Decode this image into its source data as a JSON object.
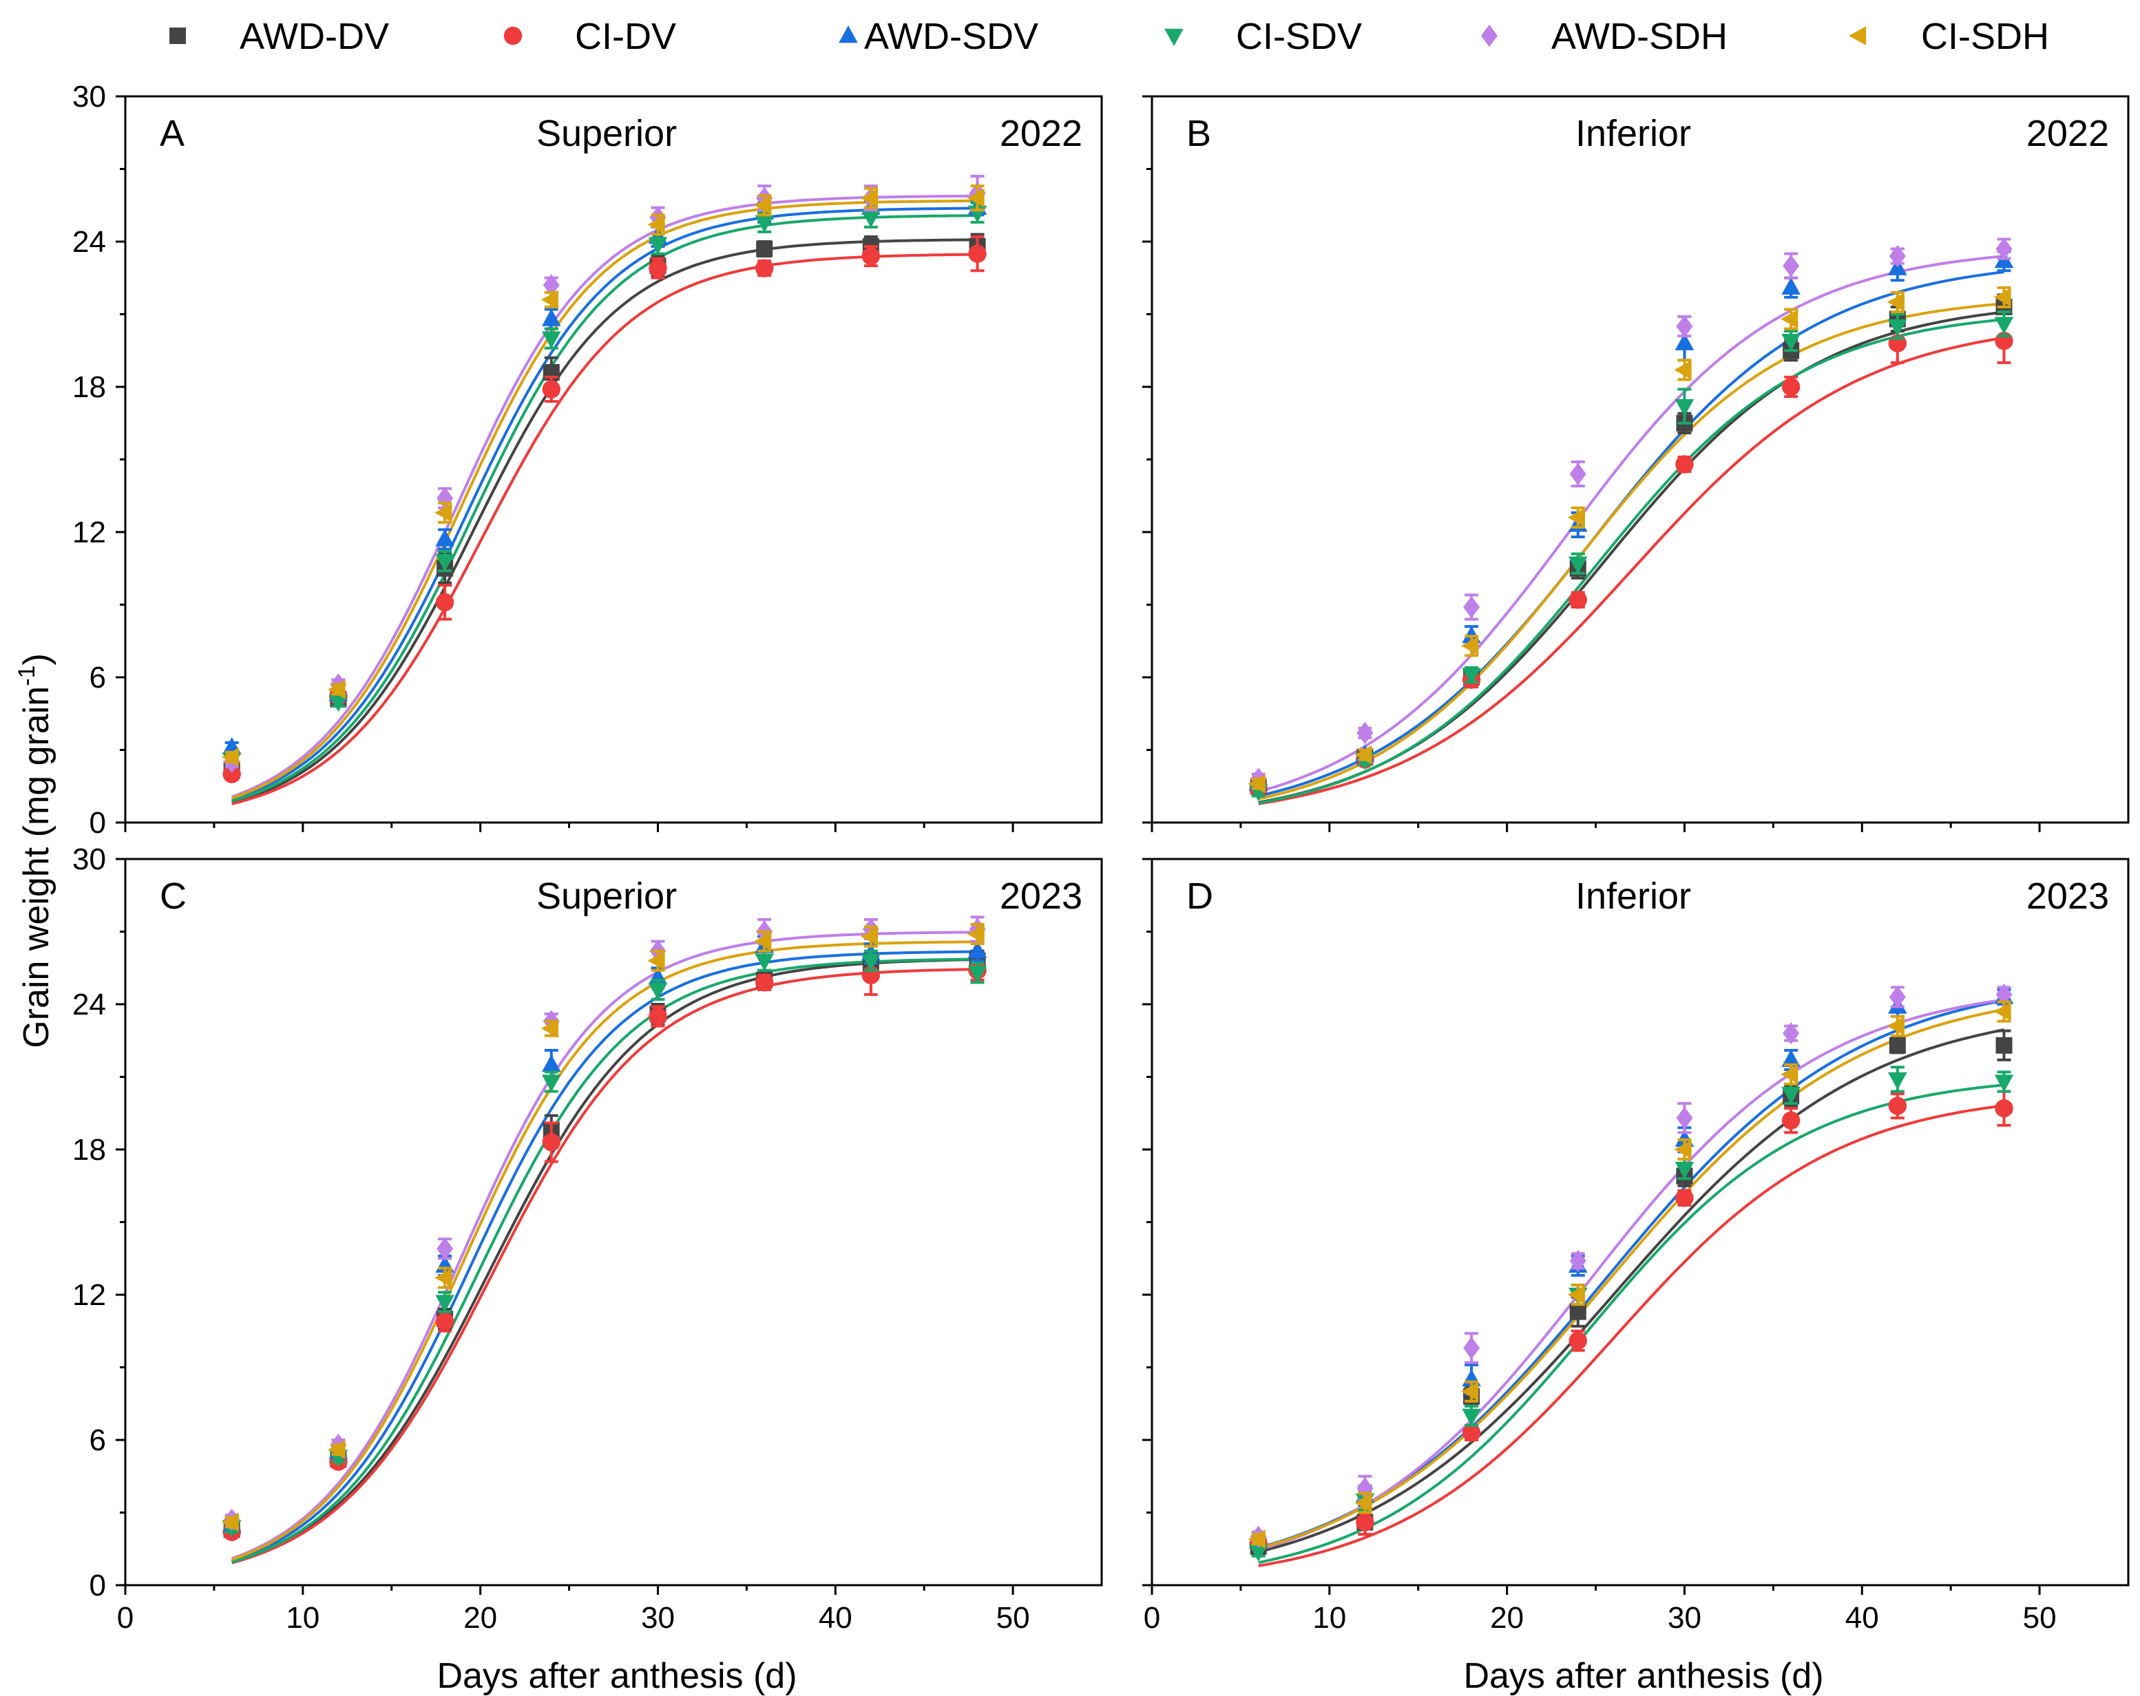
{
  "legend": [
    {
      "label": "AWD-DV",
      "color": "#444444",
      "marker": "square"
    },
    {
      "label": "CI-DV",
      "color": "#ee3b3b",
      "marker": "circle"
    },
    {
      "label": "AWD-SDV",
      "color": "#1a6fdf",
      "marker": "triangle-up"
    },
    {
      "label": "CI-SDV",
      "color": "#18a86b",
      "marker": "triangle-down"
    },
    {
      "label": "AWD-SDH",
      "color": "#bf7fe8",
      "marker": "diamond"
    },
    {
      "label": "CI-SDH",
      "color": "#d9a20f",
      "marker": "triangle-left"
    }
  ],
  "axes": {
    "xlabel": "Days after anthesis (d)",
    "ylabel_main": "Grain weight (mg grain",
    "ylabel_sup": "-1",
    "ylabel_end": ")",
    "xlim": [
      0,
      55
    ],
    "ylim": [
      0,
      30
    ],
    "xticks": [
      0,
      10,
      20,
      30,
      40,
      50
    ],
    "yticks": [
      0,
      6,
      12,
      18,
      24,
      30
    ]
  },
  "chart_data": [
    {
      "type": "scatter",
      "panel": "A",
      "title": "Superior",
      "year": "2022",
      "x": [
        6,
        12,
        18,
        24,
        30,
        36,
        42,
        48
      ],
      "series": [
        {
          "name": "AWD-DV",
          "values": [
            2.2,
            5.1,
            10.5,
            18.6,
            23.0,
            23.7,
            23.8,
            23.8
          ],
          "err": [
            0.2,
            0.2,
            0.6,
            0.6,
            0.4,
            0.3,
            0.4,
            0.5
          ]
        },
        {
          "name": "CI-DV",
          "values": [
            2.0,
            5.2,
            9.1,
            17.9,
            22.9,
            22.9,
            23.4,
            23.5
          ],
          "err": [
            0.2,
            0.2,
            0.7,
            0.5,
            0.4,
            0.3,
            0.4,
            0.7
          ]
        },
        {
          "name": "AWD-SDV",
          "values": [
            3.1,
            5.3,
            11.7,
            20.8,
            24.2,
            25.2,
            25.4,
            25.4
          ],
          "err": [
            0.2,
            0.2,
            0.4,
            0.4,
            0.4,
            0.4,
            0.3,
            0.3
          ]
        },
        {
          "name": "CI-SDV",
          "values": [
            2.6,
            5.0,
            10.8,
            20.0,
            23.9,
            24.8,
            25.0,
            25.2
          ],
          "err": [
            0.2,
            0.2,
            0.4,
            0.4,
            0.4,
            0.4,
            0.4,
            0.4
          ]
        },
        {
          "name": "AWD-SDH",
          "values": [
            2.5,
            5.7,
            13.4,
            22.2,
            25.0,
            25.8,
            25.8,
            26.0
          ],
          "err": [
            0.2,
            0.2,
            0.4,
            0.3,
            0.4,
            0.5,
            0.5,
            0.7
          ]
        },
        {
          "name": "CI-SDH",
          "values": [
            2.7,
            5.5,
            12.8,
            21.6,
            24.7,
            25.5,
            25.8,
            25.8
          ],
          "err": [
            0.2,
            0.2,
            0.4,
            0.3,
            0.4,
            0.4,
            0.4,
            0.5
          ]
        }
      ],
      "fits": [
        {
          "name": "AWD-DV",
          "A": 24.1,
          "k": 0.245,
          "t0": 19.6
        },
        {
          "name": "CI-DV",
          "A": 23.5,
          "k": 0.24,
          "t0": 20.1
        },
        {
          "name": "AWD-SDV",
          "A": 25.4,
          "k": 0.245,
          "t0": 19.2
        },
        {
          "name": "CI-SDV",
          "A": 25.1,
          "k": 0.245,
          "t0": 19.5
        },
        {
          "name": "AWD-SDH",
          "A": 25.9,
          "k": 0.25,
          "t0": 18.6
        },
        {
          "name": "CI-SDH",
          "A": 25.7,
          "k": 0.25,
          "t0": 18.8
        }
      ]
    },
    {
      "type": "scatter",
      "panel": "B",
      "title": "Inferior",
      "year": "2022",
      "x": [
        6,
        12,
        18,
        24,
        30,
        36,
        42,
        48
      ],
      "series": [
        {
          "name": "AWD-DV",
          "values": [
            1.5,
            2.7,
            6.0,
            10.5,
            16.5,
            19.5,
            20.8,
            21.3
          ],
          "err": [
            0.2,
            0.2,
            0.3,
            0.4,
            0.4,
            0.4,
            0.5,
            0.5
          ]
        },
        {
          "name": "CI-DV",
          "values": [
            1.4,
            2.6,
            5.9,
            9.2,
            14.8,
            18.0,
            19.8,
            19.9
          ],
          "err": [
            0.2,
            0.2,
            0.3,
            0.3,
            0.3,
            0.4,
            0.8,
            0.9
          ]
        },
        {
          "name": "AWD-SDV",
          "values": [
            1.6,
            2.8,
            7.7,
            12.3,
            19.8,
            22.1,
            22.9,
            23.2
          ],
          "err": [
            0.2,
            0.2,
            0.4,
            0.5,
            0.7,
            0.4,
            0.5,
            0.4
          ]
        },
        {
          "name": "CI-SDV",
          "values": [
            1.3,
            2.6,
            6.1,
            10.7,
            17.2,
            19.9,
            20.5,
            20.6
          ],
          "err": [
            0.2,
            0.2,
            0.3,
            0.4,
            0.7,
            0.4,
            0.5,
            0.5
          ]
        },
        {
          "name": "AWD-SDH",
          "values": [
            1.8,
            3.7,
            8.9,
            14.4,
            20.5,
            23.0,
            23.4,
            23.7
          ],
          "err": [
            0.2,
            0.2,
            0.5,
            0.5,
            0.4,
            0.5,
            0.3,
            0.4
          ]
        },
        {
          "name": "CI-SDH",
          "values": [
            1.6,
            2.8,
            7.3,
            12.6,
            18.7,
            20.8,
            21.5,
            21.7
          ],
          "err": [
            0.2,
            0.2,
            0.4,
            0.4,
            0.4,
            0.4,
            0.4,
            0.4
          ]
        }
      ],
      "fits": [
        {
          "name": "AWD-DV",
          "A": 21.6,
          "k": 0.165,
          "t0": 25.5
        },
        {
          "name": "CI-DV",
          "A": 20.8,
          "k": 0.155,
          "t0": 27.0
        },
        {
          "name": "AWD-SDV",
          "A": 23.3,
          "k": 0.16,
          "t0": 24.8
        },
        {
          "name": "CI-SDV",
          "A": 21.2,
          "k": 0.17,
          "t0": 25.0
        },
        {
          "name": "AWD-SDH",
          "A": 23.8,
          "k": 0.165,
          "t0": 23.4
        },
        {
          "name": "CI-SDH",
          "A": 21.8,
          "k": 0.17,
          "t0": 24.0
        }
      ]
    },
    {
      "type": "scatter",
      "panel": "C",
      "title": "Superior",
      "year": "2023",
      "x": [
        6,
        12,
        18,
        24,
        30,
        36,
        42,
        48
      ],
      "series": [
        {
          "name": "AWD-DV",
          "values": [
            2.3,
            5.2,
            11.0,
            18.8,
            23.6,
            25.0,
            25.7,
            25.8
          ],
          "err": [
            0.2,
            0.2,
            0.4,
            0.6,
            0.4,
            0.4,
            0.4,
            0.4
          ]
        },
        {
          "name": "CI-DV",
          "values": [
            2.2,
            5.1,
            10.9,
            18.3,
            23.5,
            24.9,
            25.2,
            25.4
          ],
          "err": [
            0.2,
            0.2,
            0.4,
            0.8,
            0.4,
            0.3,
            0.8,
            0.4
          ]
        },
        {
          "name": "AWD-SDV",
          "values": [
            2.5,
            5.5,
            13.2,
            21.5,
            25.1,
            26.4,
            26.1,
            26.2
          ],
          "err": [
            0.2,
            0.2,
            0.4,
            0.6,
            0.4,
            0.4,
            0.4,
            0.4
          ]
        },
        {
          "name": "CI-SDV",
          "values": [
            2.4,
            5.3,
            11.7,
            20.8,
            24.6,
            25.8,
            25.8,
            25.3
          ],
          "err": [
            0.2,
            0.2,
            0.4,
            0.4,
            0.4,
            0.4,
            0.4,
            0.4
          ]
        },
        {
          "name": "AWD-SDH",
          "values": [
            2.7,
            5.8,
            13.9,
            23.3,
            26.2,
            27.0,
            27.1,
            27.1
          ],
          "err": [
            0.2,
            0.2,
            0.4,
            0.3,
            0.4,
            0.5,
            0.4,
            0.5
          ]
        },
        {
          "name": "CI-SDH",
          "values": [
            2.6,
            5.6,
            12.7,
            23.0,
            25.8,
            26.6,
            26.8,
            26.9
          ],
          "err": [
            0.2,
            0.2,
            0.4,
            0.3,
            0.4,
            0.4,
            0.4,
            0.4
          ]
        }
      ],
      "fits": [
        {
          "name": "AWD-DV",
          "A": 25.9,
          "k": 0.225,
          "t0": 20.5
        },
        {
          "name": "CI-DV",
          "A": 25.5,
          "k": 0.225,
          "t0": 20.6
        },
        {
          "name": "AWD-SDV",
          "A": 26.2,
          "k": 0.24,
          "t0": 19.4
        },
        {
          "name": "CI-SDV",
          "A": 25.9,
          "k": 0.235,
          "t0": 19.9
        },
        {
          "name": "AWD-SDH",
          "A": 27.0,
          "k": 0.245,
          "t0": 18.9
        },
        {
          "name": "CI-SDH",
          "A": 26.6,
          "k": 0.245,
          "t0": 19.0
        }
      ]
    },
    {
      "type": "scatter",
      "panel": "D",
      "title": "Inferior",
      "year": "2023",
      "x": [
        6,
        12,
        18,
        24,
        30,
        36,
        42,
        48
      ],
      "series": [
        {
          "name": "AWD-DV",
          "values": [
            1.6,
            2.6,
            7.8,
            11.3,
            16.9,
            20.2,
            22.3,
            22.3
          ],
          "err": [
            0.2,
            0.5,
            0.4,
            0.6,
            0.4,
            0.4,
            0.3,
            0.6
          ]
        },
        {
          "name": "CI-DV",
          "values": [
            1.7,
            2.6,
            6.3,
            10.1,
            16.0,
            19.2,
            19.8,
            19.7
          ],
          "err": [
            0.2,
            0.5,
            0.3,
            0.4,
            0.3,
            0.5,
            0.5,
            0.7
          ]
        },
        {
          "name": "AWD-SDV",
          "values": [
            1.8,
            3.7,
            8.5,
            13.2,
            18.4,
            21.7,
            23.9,
            24.3
          ],
          "err": [
            0.2,
            0.4,
            0.6,
            0.4,
            0.5,
            0.4,
            0.4,
            0.3
          ]
        },
        {
          "name": "CI-SDV",
          "values": [
            1.4,
            3.5,
            7.0,
            12.0,
            17.2,
            20.3,
            20.9,
            20.8
          ],
          "err": [
            0.2,
            0.4,
            0.4,
            0.4,
            0.4,
            0.4,
            0.5,
            0.4
          ]
        },
        {
          "name": "AWD-SDH",
          "values": [
            2.0,
            4.0,
            9.8,
            13.4,
            19.3,
            22.8,
            24.3,
            24.4
          ],
          "err": [
            0.2,
            0.5,
            0.6,
            0.3,
            0.6,
            0.3,
            0.4,
            0.3
          ]
        },
        {
          "name": "CI-SDH",
          "values": [
            1.9,
            3.4,
            8.0,
            12.0,
            18.0,
            21.1,
            23.1,
            23.7
          ],
          "err": [
            0.2,
            0.4,
            0.4,
            0.4,
            0.4,
            0.4,
            0.4,
            0.4
          ]
        }
      ],
      "fits": [
        {
          "name": "AWD-DV",
          "A": 24.0,
          "k": 0.14,
          "t0": 26.0
        },
        {
          "name": "CI-DV",
          "A": 20.4,
          "k": 0.16,
          "t0": 26.0
        },
        {
          "name": "AWD-SDV",
          "A": 25.2,
          "k": 0.14,
          "t0": 25.5
        },
        {
          "name": "CI-SDV",
          "A": 21.1,
          "k": 0.165,
          "t0": 24.6
        },
        {
          "name": "AWD-SDH",
          "A": 24.9,
          "k": 0.15,
          "t0": 24.5
        },
        {
          "name": "CI-SDH",
          "A": 24.8,
          "k": 0.14,
          "t0": 25.5
        }
      ]
    }
  ]
}
